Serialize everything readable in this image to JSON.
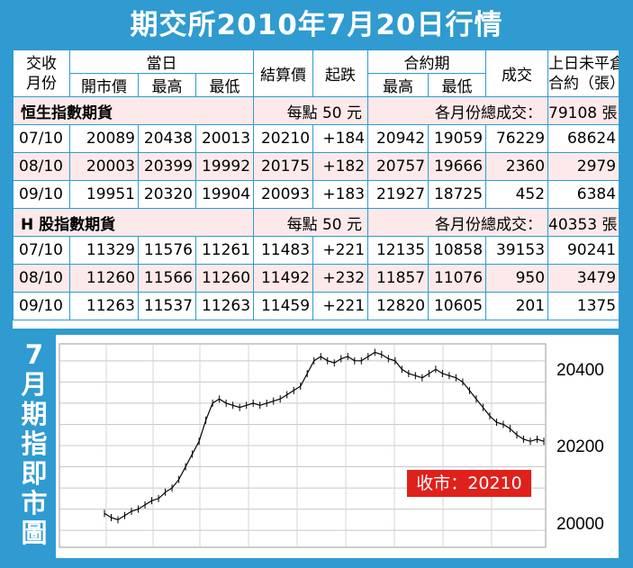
{
  "title": "期交所2010年7月20日行情",
  "side_title": [
    "7",
    "月",
    "期",
    "指",
    "即",
    "市",
    "圖"
  ],
  "table": {
    "header_top": {
      "month": "交收月份",
      "today": "當日",
      "settle": "結算價",
      "change": "起跌",
      "contract": "合約期",
      "volume": "成交",
      "oi": "上日未平倉合約（張）"
    },
    "month_l1": "交收",
    "month_l2": "月份",
    "oi_l1": "上日未平倉",
    "oi_l2": "合約（張）",
    "header_bot": {
      "open": "開市價",
      "high": "最高",
      "low": "最低",
      "c_high": "最高",
      "c_low": "最低"
    },
    "sections": [
      {
        "name": "恒生指數期貨",
        "per_point": "每點 50 元",
        "total_label": "各月份總成交：",
        "total": "79108 張",
        "rows": [
          {
            "month": "07/10",
            "open": "20089",
            "high": "20438",
            "low": "20013",
            "settle": "20210",
            "change": "+184",
            "c_high": "20942",
            "c_low": "19059",
            "volume": "76229",
            "oi": "68624"
          },
          {
            "month": "08/10",
            "open": "20003",
            "high": "20399",
            "low": "19992",
            "settle": "20175",
            "change": "+182",
            "c_high": "20757",
            "c_low": "19666",
            "volume": "2360",
            "oi": "2979"
          },
          {
            "month": "09/10",
            "open": "19951",
            "high": "20320",
            "low": "19904",
            "settle": "20093",
            "change": "+183",
            "c_high": "21927",
            "c_low": "18725",
            "volume": "452",
            "oi": "6384"
          }
        ]
      },
      {
        "name": "H 股指數期貨",
        "per_point": "每點 50 元",
        "total_label": "各月份總成交：",
        "total": "40353 張",
        "rows": [
          {
            "month": "07/10",
            "open": "11329",
            "high": "11576",
            "low": "11261",
            "settle": "11483",
            "change": "+221",
            "c_high": "12135",
            "c_low": "10858",
            "volume": "39153",
            "oi": "90241"
          },
          {
            "month": "08/10",
            "open": "11260",
            "high": "11566",
            "low": "11260",
            "settle": "11492",
            "change": "+232",
            "c_high": "11857",
            "c_low": "11076",
            "volume": "950",
            "oi": "3479"
          },
          {
            "month": "09/10",
            "open": "11263",
            "high": "11537",
            "low": "11263",
            "settle": "11459",
            "change": "+221",
            "c_high": "12820",
            "c_low": "10605",
            "volume": "201",
            "oi": "1375"
          }
        ]
      }
    ]
  },
  "chart_data": {
    "type": "line",
    "title": "7月期指即市圖",
    "yticks": [
      "20400",
      "20200",
      "20000"
    ],
    "ylim": [
      19960,
      20440
    ],
    "close_label": "收市：20210",
    "grid": true,
    "values": [
      20040,
      20030,
      20025,
      20035,
      20045,
      20050,
      20060,
      20070,
      20075,
      20090,
      20100,
      20120,
      20150,
      20180,
      20210,
      20260,
      20300,
      20310,
      20300,
      20295,
      20290,
      20295,
      20300,
      20295,
      20300,
      20305,
      20310,
      20320,
      20330,
      20340,
      20370,
      20400,
      20410,
      20400,
      20395,
      20405,
      20410,
      20400,
      20400,
      20410,
      20420,
      20415,
      20405,
      20400,
      20380,
      20370,
      20365,
      20360,
      20370,
      20380,
      20370,
      20365,
      20360,
      20350,
      20330,
      20310,
      20290,
      20270,
      20255,
      20250,
      20240,
      20225,
      20215,
      20210,
      20215,
      20210
    ]
  },
  "colors": {
    "background": "#2f9bd0",
    "pink_row": "#fde9ea",
    "close_box": "#e0201b",
    "line": "#000000"
  }
}
